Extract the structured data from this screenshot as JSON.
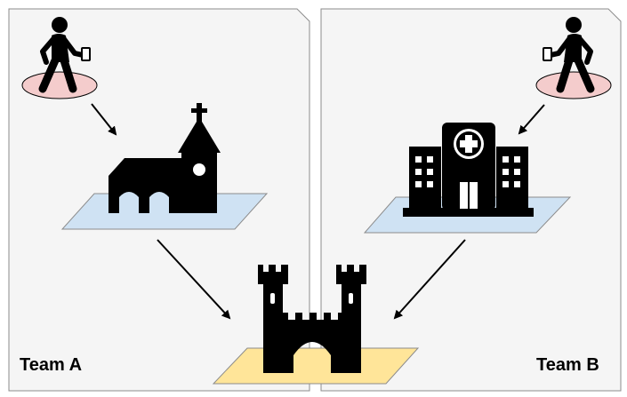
{
  "teams": [
    {
      "label": "Team A",
      "building": "church-icon"
    },
    {
      "label": "Team B",
      "building": "hospital-icon"
    }
  ],
  "shared": {
    "building": "castle-icon"
  },
  "colors": {
    "panel_fill": "#f5f5f5",
    "panel_stroke": "#8c8c8c",
    "person_base": "#f4cccc",
    "building_platform": "#cfe2f3",
    "castle_platform": "#ffe599",
    "icon": "#000000"
  }
}
